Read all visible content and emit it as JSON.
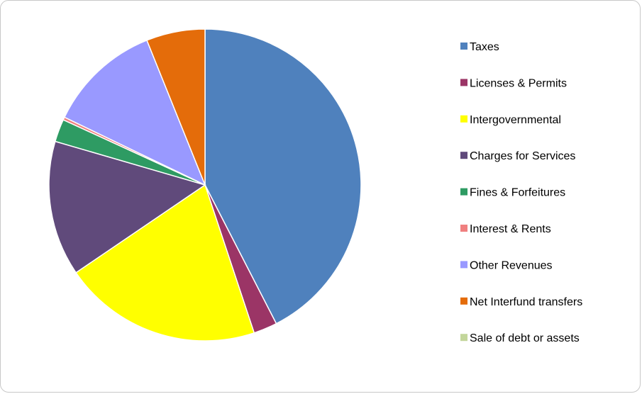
{
  "chart_data": {
    "type": "pie",
    "title": "",
    "legend_position": "right",
    "slices": [
      {
        "label": "Taxes",
        "value": 43.3,
        "color": "#4F81BD"
      },
      {
        "label": "Licenses & Permits",
        "value": 2.5,
        "color": "#9B3566"
      },
      {
        "label": "Intergovernmental",
        "value": 21.0,
        "color": "#FFFF00"
      },
      {
        "label": "Charges for Services",
        "value": 14.3,
        "color": "#604A7B"
      },
      {
        "label": "Fines & Forfeitures",
        "value": 2.4,
        "color": "#2E9B63"
      },
      {
        "label": "Interest & Rents",
        "value": 0.3,
        "color": "#F08080"
      },
      {
        "label": "Other Revenues",
        "value": 12.0,
        "color": "#9999FF"
      },
      {
        "label": "Net Interfund transfers",
        "value": 6.2,
        "color": "#E46C0A"
      },
      {
        "label": "Sale of debt or assets",
        "value": 0.0,
        "color": "#C3D69B"
      }
    ]
  }
}
